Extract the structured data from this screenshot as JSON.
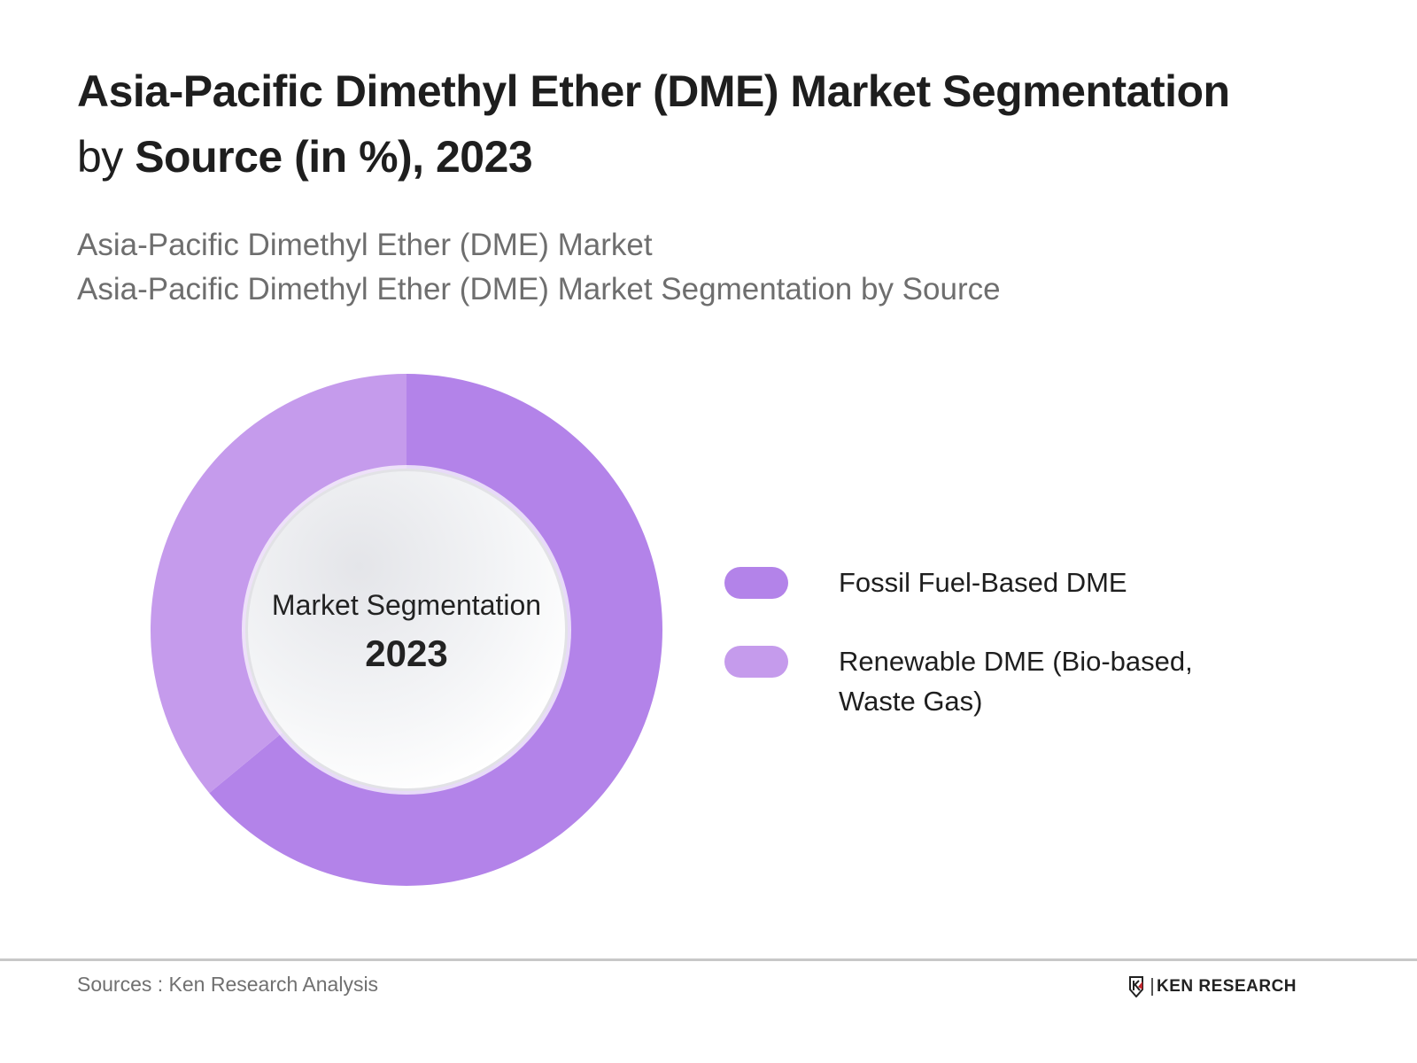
{
  "header": {
    "title_bold_1": "Asia-Pacific Dimethyl Ether (DME) Market Segmentation",
    "title_light": "by ",
    "title_bold_2": "Source (in %), 2023",
    "subtitle_line_1": "Asia-Pacific Dimethyl Ether (DME) Market",
    "subtitle_line_2": "Asia-Pacific Dimethyl Ether (DME) Market Segmentation by Source"
  },
  "center": {
    "label": "Market Segmentation",
    "year": "2023"
  },
  "legend": [
    {
      "label": "Fossil Fuel-Based DME",
      "color": "#b383e9"
    },
    {
      "label": "Renewable DME (Bio-based, Waste Gas)",
      "color": "#c59bec"
    }
  ],
  "footer": {
    "source": "Sources : Ken Research Analysis",
    "logo_text": "KEN RESEARCH"
  },
  "chart_data": {
    "type": "pie",
    "variant": "donut",
    "title": "Asia-Pacific Dimethyl Ether (DME) Market Segmentation by Source (in %), 2023",
    "subtitle": "Asia-Pacific Dimethyl Ether (DME) Market Segmentation by Source",
    "categories": [
      "Fossil Fuel-Based DME",
      "Renewable DME (Bio-based, Waste Gas)"
    ],
    "values": [
      64,
      36
    ],
    "unit": "%",
    "colors": [
      "#b383e9",
      "#c59bec"
    ],
    "center_text": [
      "Market Segmentation",
      "2023"
    ],
    "legend_position": "right",
    "data_labels_shown": false
  }
}
